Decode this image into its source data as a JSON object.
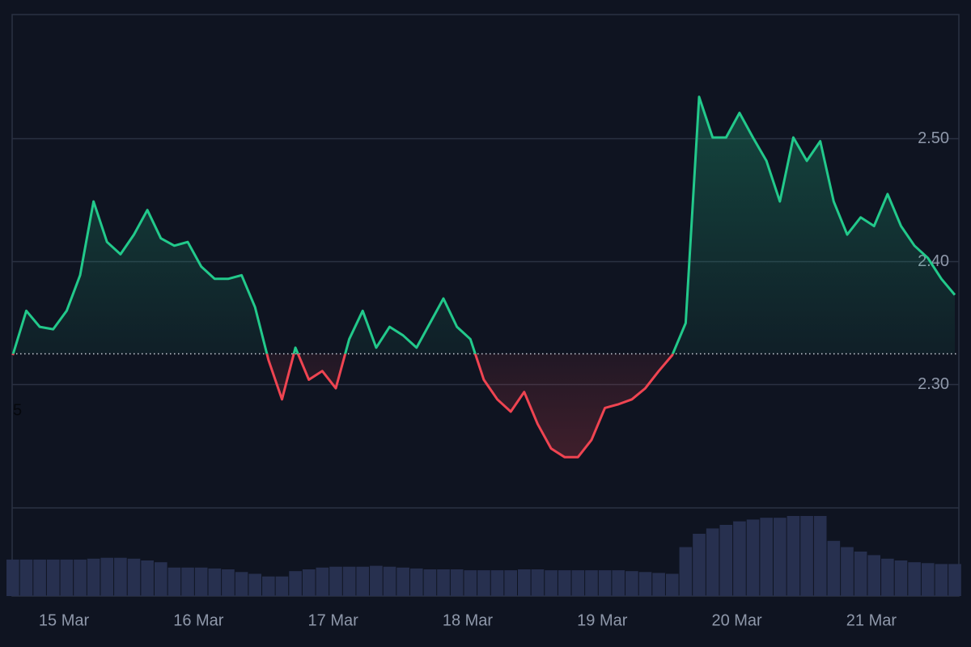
{
  "chart_data": {
    "type": "baseline-area",
    "x": [
      -0.38,
      -0.28,
      -0.18,
      -0.08,
      0.02,
      0.12,
      0.22,
      0.32,
      0.42,
      0.52,
      0.62,
      0.72,
      0.82,
      0.92,
      1.02,
      1.12,
      1.22,
      1.32,
      1.42,
      1.52,
      1.62,
      1.72,
      1.82,
      1.92,
      2.02,
      2.12,
      2.22,
      2.32,
      2.42,
      2.52,
      2.62,
      2.72,
      2.82,
      2.92,
      3.02,
      3.12,
      3.22,
      3.32,
      3.42,
      3.52,
      3.62,
      3.72,
      3.82,
      3.92,
      4.02,
      4.12,
      4.22,
      4.32,
      4.42,
      4.52,
      4.62,
      4.72,
      4.82,
      4.92,
      5.02,
      5.12,
      5.22,
      5.32,
      5.42,
      5.52,
      5.62,
      5.72,
      5.82,
      5.92,
      6.02,
      6.12,
      6.22,
      6.32,
      6.42,
      6.52,
      6.62
    ],
    "values": [
      2.324,
      2.36,
      2.347,
      2.345,
      2.36,
      2.389,
      2.449,
      2.416,
      2.406,
      2.422,
      2.442,
      2.419,
      2.413,
      2.416,
      2.396,
      2.386,
      2.386,
      2.389,
      2.363,
      2.32,
      2.288,
      2.33,
      2.304,
      2.311,
      2.297,
      2.337,
      2.36,
      2.33,
      2.347,
      2.34,
      2.33,
      2.35,
      2.37,
      2.347,
      2.337,
      2.304,
      2.288,
      2.278,
      2.294,
      2.268,
      2.248,
      2.241,
      2.241,
      2.255,
      2.281,
      2.284,
      2.288,
      2.297,
      2.311,
      2.324,
      2.35,
      2.534,
      2.501,
      2.501,
      2.521,
      2.501,
      2.482,
      2.449,
      2.501,
      2.482,
      2.498,
      2.449,
      2.422,
      2.436,
      2.429,
      2.455,
      2.429,
      2.413,
      2.403,
      2.386,
      2.373
    ],
    "baseline": 2.325,
    "up_color": "#22c98b",
    "down_color": "#ef4451",
    "xlim": [
      -0.385,
      6.65
    ],
    "xticks": [
      {
        "value": 0,
        "label": "15 Mar"
      },
      {
        "value": 1,
        "label": "16 Mar"
      },
      {
        "value": 2,
        "label": "17 Mar"
      },
      {
        "value": 3,
        "label": "18 Mar"
      },
      {
        "value": 4,
        "label": "19 Mar"
      },
      {
        "value": 5,
        "label": "20 Mar"
      },
      {
        "value": 6,
        "label": "21 Mar"
      }
    ],
    "ylim": [
      2.128,
      2.601
    ],
    "yticks": [
      {
        "value": 2.3,
        "label": "2.30"
      },
      {
        "value": 2.4,
        "label": "2.40"
      },
      {
        "value": 2.5,
        "label": "2.50"
      }
    ],
    "grid": true,
    "annotation": "5",
    "volume": {
      "color": "#27304f",
      "ylim": [
        0,
        100
      ],
      "values": [
        41,
        41,
        41,
        41,
        41,
        41,
        42,
        43,
        43,
        42,
        40,
        38,
        32,
        32,
        32,
        31,
        30,
        27,
        25,
        22,
        22,
        28,
        30,
        32,
        33,
        33,
        33,
        34,
        33,
        32,
        31,
        30,
        30,
        30,
        29,
        29,
        29,
        29,
        30,
        30,
        29,
        29,
        29,
        29,
        29,
        29,
        28,
        27,
        26,
        25,
        55,
        70,
        76,
        80,
        84,
        86,
        88,
        88,
        90,
        90,
        90,
        62,
        55,
        50,
        46,
        42,
        40,
        38,
        37,
        36,
        36
      ]
    }
  }
}
